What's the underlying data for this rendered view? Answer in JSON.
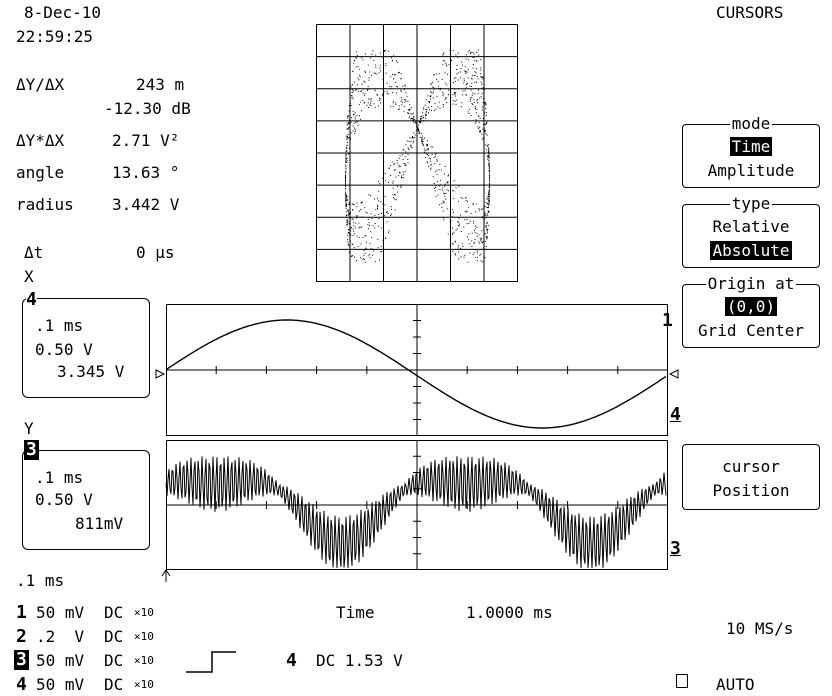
{
  "header": {
    "date": "8-Dec-10",
    "time": "22:59:25",
    "title": "CURSORS"
  },
  "measurements": [
    {
      "label": "ΔY/ΔX",
      "value": "243 m"
    },
    {
      "label": "",
      "value": "-12.30 dB"
    },
    {
      "label": "ΔY*ΔX",
      "value": "2.71 V²"
    },
    {
      "label": "angle",
      "value": "13.63 °"
    },
    {
      "label": "radius",
      "value": "3.442 V"
    },
    {
      "label": "Δt",
      "value": "0 μs"
    }
  ],
  "x_channel": {
    "axis": "X",
    "channel": "4",
    "timebase": ".1 ms",
    "volts_div": "0.50 V",
    "reading": "3.345 V"
  },
  "y_channel": {
    "axis": "Y",
    "channel": "3",
    "timebase": ".1 ms",
    "volts_div": "0.50 V",
    "reading": "811mV"
  },
  "menu": {
    "mode_title": "mode",
    "mode_opt1": "Time",
    "mode_opt2": "Amplitude",
    "type_title": "type",
    "type_opt1": "Relative",
    "type_opt2": "Absolute",
    "origin_title": "Origin at",
    "origin_opt1": "(0,0)",
    "origin_opt2": "Grid Center",
    "cursor_line1": "cursor",
    "cursor_line2": "Position"
  },
  "bottom": {
    "timebase": ".1 ms",
    "channels": [
      {
        "num": "1",
        "scale": "50 mV",
        "coupling": "DC",
        "probe": "×10"
      },
      {
        "num": "2",
        "scale": ".2  V",
        "coupling": "DC",
        "probe": "×10"
      },
      {
        "num": "3",
        "scale": "50 mV",
        "coupling": "DC",
        "probe": "×10"
      },
      {
        "num": "4",
        "scale": "50 mV",
        "coupling": "DC",
        "probe": "×10"
      }
    ],
    "time_label": "Time",
    "time_value": "1.0000 ms",
    "sample_rate": "10 MS/s",
    "trigger_channel": "4",
    "trigger_desc": "DC 1.53 V",
    "trigger_mode": "AUTO"
  },
  "traces": {
    "upper_label": "4",
    "lower_label": "3",
    "marker_label": "1"
  },
  "colors": {
    "background": "#ffffff",
    "foreground": "#000000"
  }
}
